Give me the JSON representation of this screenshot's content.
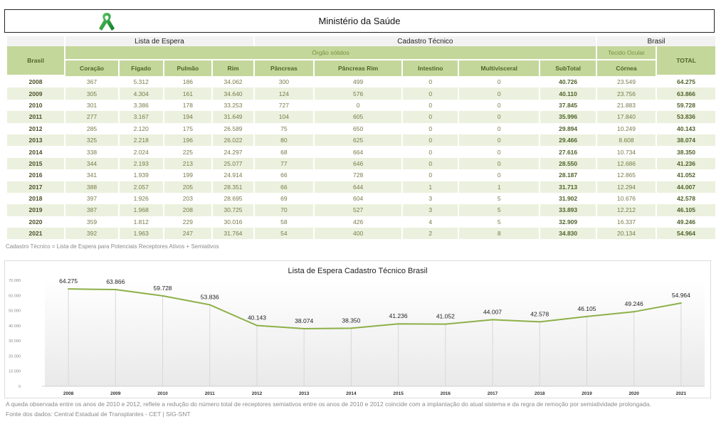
{
  "header": {
    "logo_icon": "green-awareness-ribbon-icon",
    "title": "Ministério da Saúde"
  },
  "table": {
    "group_labels": {
      "left": "Lista de Espera",
      "middle": "Cadastro Técnico",
      "right": "Brasil"
    },
    "row_header": "Brasil",
    "orgaos_label": "Órgão sólidos",
    "tecido_label": "Tecido Ocular",
    "total_label": "TOTAL",
    "columns": [
      "Coração",
      "Fígado",
      "Pulmão",
      "Rim",
      "Pâncreas",
      "Pâncreas Rim",
      "Intestino",
      "Multivisceral",
      "SubTotal",
      "Córnea"
    ],
    "rows": [
      {
        "year": "2008",
        "values": [
          "367",
          "5.312",
          "186",
          "34.062",
          "300",
          "499",
          "0",
          "0",
          "40.726",
          "23.549"
        ],
        "total": "64.275"
      },
      {
        "year": "2009",
        "values": [
          "305",
          "4.304",
          "161",
          "34.640",
          "124",
          "576",
          "0",
          "0",
          "40.110",
          "23.756"
        ],
        "total": "63.866"
      },
      {
        "year": "2010",
        "values": [
          "301",
          "3.386",
          "178",
          "33.253",
          "727",
          "0",
          "0",
          "0",
          "37.845",
          "21.883"
        ],
        "total": "59.728"
      },
      {
        "year": "2011",
        "values": [
          "277",
          "3.167",
          "194",
          "31.649",
          "104",
          "605",
          "0",
          "0",
          "35.996",
          "17.840"
        ],
        "total": "53.836"
      },
      {
        "year": "2012",
        "values": [
          "285",
          "2.120",
          "175",
          "26.589",
          "75",
          "650",
          "0",
          "0",
          "29.894",
          "10.249"
        ],
        "total": "40.143"
      },
      {
        "year": "2013",
        "values": [
          "325",
          "2.218",
          "196",
          "26.022",
          "80",
          "625",
          "0",
          "0",
          "29.466",
          "8.608"
        ],
        "total": "38.074"
      },
      {
        "year": "2014",
        "values": [
          "338",
          "2.024",
          "225",
          "24.297",
          "68",
          "664",
          "0",
          "0",
          "27.616",
          "10.734"
        ],
        "total": "38.350"
      },
      {
        "year": "2015",
        "values": [
          "344",
          "2.193",
          "213",
          "25.077",
          "77",
          "646",
          "0",
          "0",
          "28.550",
          "12.686"
        ],
        "total": "41.236"
      },
      {
        "year": "2016",
        "values": [
          "341",
          "1.939",
          "199",
          "24.914",
          "66",
          "728",
          "0",
          "0",
          "28.187",
          "12.865"
        ],
        "total": "41.052"
      },
      {
        "year": "2017",
        "values": [
          "388",
          "2.057",
          "205",
          "28.351",
          "66",
          "644",
          "1",
          "1",
          "31.713",
          "12.294"
        ],
        "total": "44.007"
      },
      {
        "year": "2018",
        "values": [
          "397",
          "1.926",
          "203",
          "28.695",
          "69",
          "604",
          "3",
          "5",
          "31.902",
          "10.676"
        ],
        "total": "42.578"
      },
      {
        "year": "2019",
        "values": [
          "387",
          "1.968",
          "208",
          "30.725",
          "70",
          "527",
          "3",
          "5",
          "33.893",
          "12.212"
        ],
        "total": "46.105"
      },
      {
        "year": "2020",
        "values": [
          "359",
          "1.812",
          "229",
          "30.016",
          "58",
          "426",
          "4",
          "5",
          "32.909",
          "16.337"
        ],
        "total": "49.246"
      },
      {
        "year": "2021",
        "values": [
          "392",
          "1.963",
          "247",
          "31.764",
          "54",
          "400",
          "2",
          "8",
          "34.830",
          "20.134"
        ],
        "total": "54.964"
      }
    ],
    "note": "Cadastro Técnico = Lista de Espera para Potenciais Receptores Ativos + Semiativos"
  },
  "colors": {
    "header_green": "#c4d79b",
    "header_text": "#4f6228",
    "alt_row": "#ebf1de",
    "line": "#8db048"
  },
  "chart_data": {
    "type": "line",
    "title": "Lista de Espera Cadastro Técnico Brasil",
    "xlabel": "",
    "ylabel": "",
    "categories": [
      "2008",
      "2009",
      "2010",
      "2011",
      "2012",
      "2013",
      "2014",
      "2015",
      "2016",
      "2017",
      "2018",
      "2019",
      "2020",
      "2021"
    ],
    "series": [
      {
        "name": "TOTAL",
        "values": [
          64275,
          63866,
          59728,
          53836,
          40143,
          38074,
          38350,
          41236,
          41052,
          44007,
          42578,
          46105,
          49246,
          54964
        ],
        "labels": [
          "64.275",
          "63.866",
          "59.728",
          "53.836",
          "40.143",
          "38.074",
          "38.350",
          "41.236",
          "41.052",
          "44.007",
          "42.578",
          "46.105",
          "49.246",
          "54.964"
        ]
      }
    ],
    "ylim": [
      0,
      70000
    ],
    "yticks": [
      0,
      10000,
      20000,
      30000,
      40000,
      50000,
      60000,
      70000
    ],
    "ytick_labels": [
      "0",
      "10.000",
      "20.000",
      "30.000",
      "40.000",
      "50.000",
      "60.000",
      "70.000"
    ],
    "grid": "vertical drop lines",
    "legend": "none"
  },
  "footer": {
    "explanation": "A queda observada entre os anos de 2010 e 2012, reflete a redução do número total de receptores semiativos entre os anos de 2010 e 2012 coincide com a implantação do atual sistema e da regra de remoção por semiatividade prolongada.",
    "source": "Fonte dos dados: Central Estadual de Transplantes - CET | SIG-SNT"
  }
}
